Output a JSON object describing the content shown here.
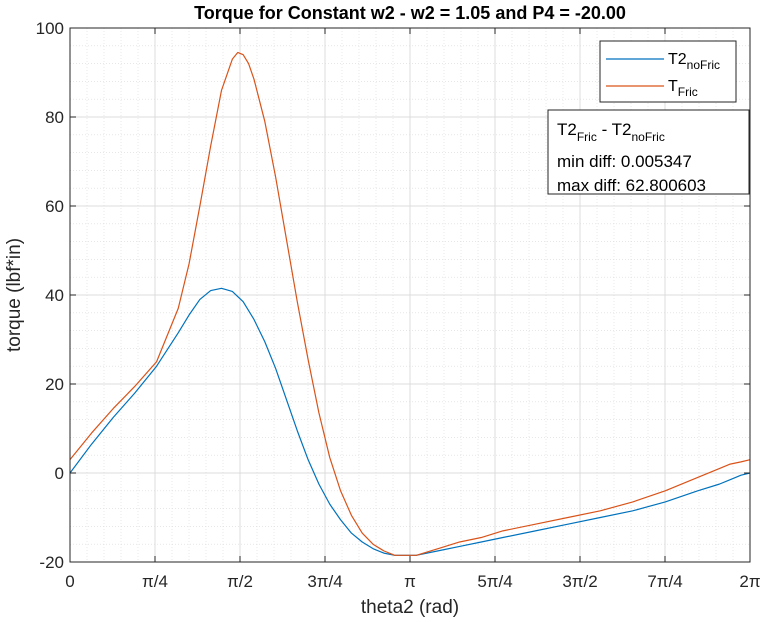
{
  "chart_data": {
    "type": "line",
    "title": "Torque for Constant w2 - w2 = 1.05 and P4 = -20.00",
    "xlabel": "theta2 (rad)",
    "ylabel": "torque (lbf*in)",
    "xlim": [
      0,
      6.2832
    ],
    "ylim": [
      -20,
      100
    ],
    "x_ticks": [
      0,
      0.7854,
      1.5708,
      2.3562,
      3.1416,
      3.927,
      4.7124,
      5.4978,
      6.2832
    ],
    "x_tick_labels": [
      "0",
      "π/4",
      "π/2",
      "3π/4",
      "π",
      "5π/4",
      "3π/2",
      "7π/4",
      "2π"
    ],
    "y_ticks": [
      -20,
      0,
      20,
      40,
      60,
      80,
      100
    ],
    "y_tick_labels": [
      "-20",
      "0",
      "20",
      "40",
      "60",
      "80",
      "100"
    ],
    "grid": true,
    "minor_grid": true,
    "legend_position": "top-right",
    "series": [
      {
        "legend_main": "T2",
        "legend_sub": "noFric",
        "color": "#0072BD",
        "x": [
          0,
          0.2,
          0.4,
          0.6,
          0.8,
          1.0,
          1.1,
          1.2,
          1.3,
          1.4,
          1.5,
          1.6,
          1.7,
          1.8,
          1.9,
          2.0,
          2.1,
          2.2,
          2.3,
          2.4,
          2.5,
          2.6,
          2.7,
          2.8,
          2.9,
          3.0,
          3.2,
          3.4,
          3.6,
          3.8,
          4.0,
          4.3,
          4.6,
          4.9,
          5.2,
          5.5,
          5.8,
          6.0,
          6.1,
          6.2,
          6.2832
        ],
        "y": [
          0,
          6.5,
          12.5,
          18,
          24,
          31.5,
          35.5,
          39,
          41,
          41.5,
          40.8,
          38.5,
          34.5,
          29.5,
          23.5,
          16.5,
          9.5,
          3,
          -2.5,
          -7,
          -10.5,
          -13.5,
          -15.5,
          -17,
          -18,
          -18.5,
          -18.5,
          -17.5,
          -16.5,
          -15.5,
          -14.5,
          -13,
          -11.5,
          -10,
          -8.5,
          -6.5,
          -4,
          -2.5,
          -1.5,
          -0.5,
          0
        ]
      },
      {
        "legend_main": "T",
        "legend_sub": "Fric",
        "color": "#D95319",
        "x": [
          0,
          0.2,
          0.4,
          0.6,
          0.8,
          1.0,
          1.1,
          1.2,
          1.3,
          1.4,
          1.5,
          1.55,
          1.6,
          1.65,
          1.7,
          1.8,
          1.9,
          2.0,
          2.1,
          2.2,
          2.3,
          2.4,
          2.5,
          2.6,
          2.7,
          2.8,
          2.9,
          3.0,
          3.2,
          3.4,
          3.6,
          3.8,
          4.0,
          4.3,
          4.6,
          4.9,
          5.2,
          5.5,
          5.8,
          6.0,
          6.1,
          6.2,
          6.2832
        ],
        "y": [
          3,
          9,
          14.5,
          19.5,
          25,
          37,
          47,
          60,
          73.5,
          86,
          93,
          94.5,
          94,
          92,
          88.5,
          79,
          66.5,
          52.5,
          38.5,
          25.5,
          13.5,
          3.5,
          -4,
          -9.5,
          -13.5,
          -16,
          -17.5,
          -18.5,
          -18.5,
          -17,
          -15.5,
          -14.5,
          -13,
          -11.5,
          -10,
          -8.5,
          -6.5,
          -4,
          -1,
          1,
          2,
          2.5,
          3
        ]
      }
    ],
    "annotation": {
      "line1_a": "T2",
      "line1_a_sub": "Fric",
      "line1_b": " - T2",
      "line1_b_sub": "noFric",
      "line2": "min diff: 0.005347",
      "line3": "max diff: 62.800603"
    }
  }
}
